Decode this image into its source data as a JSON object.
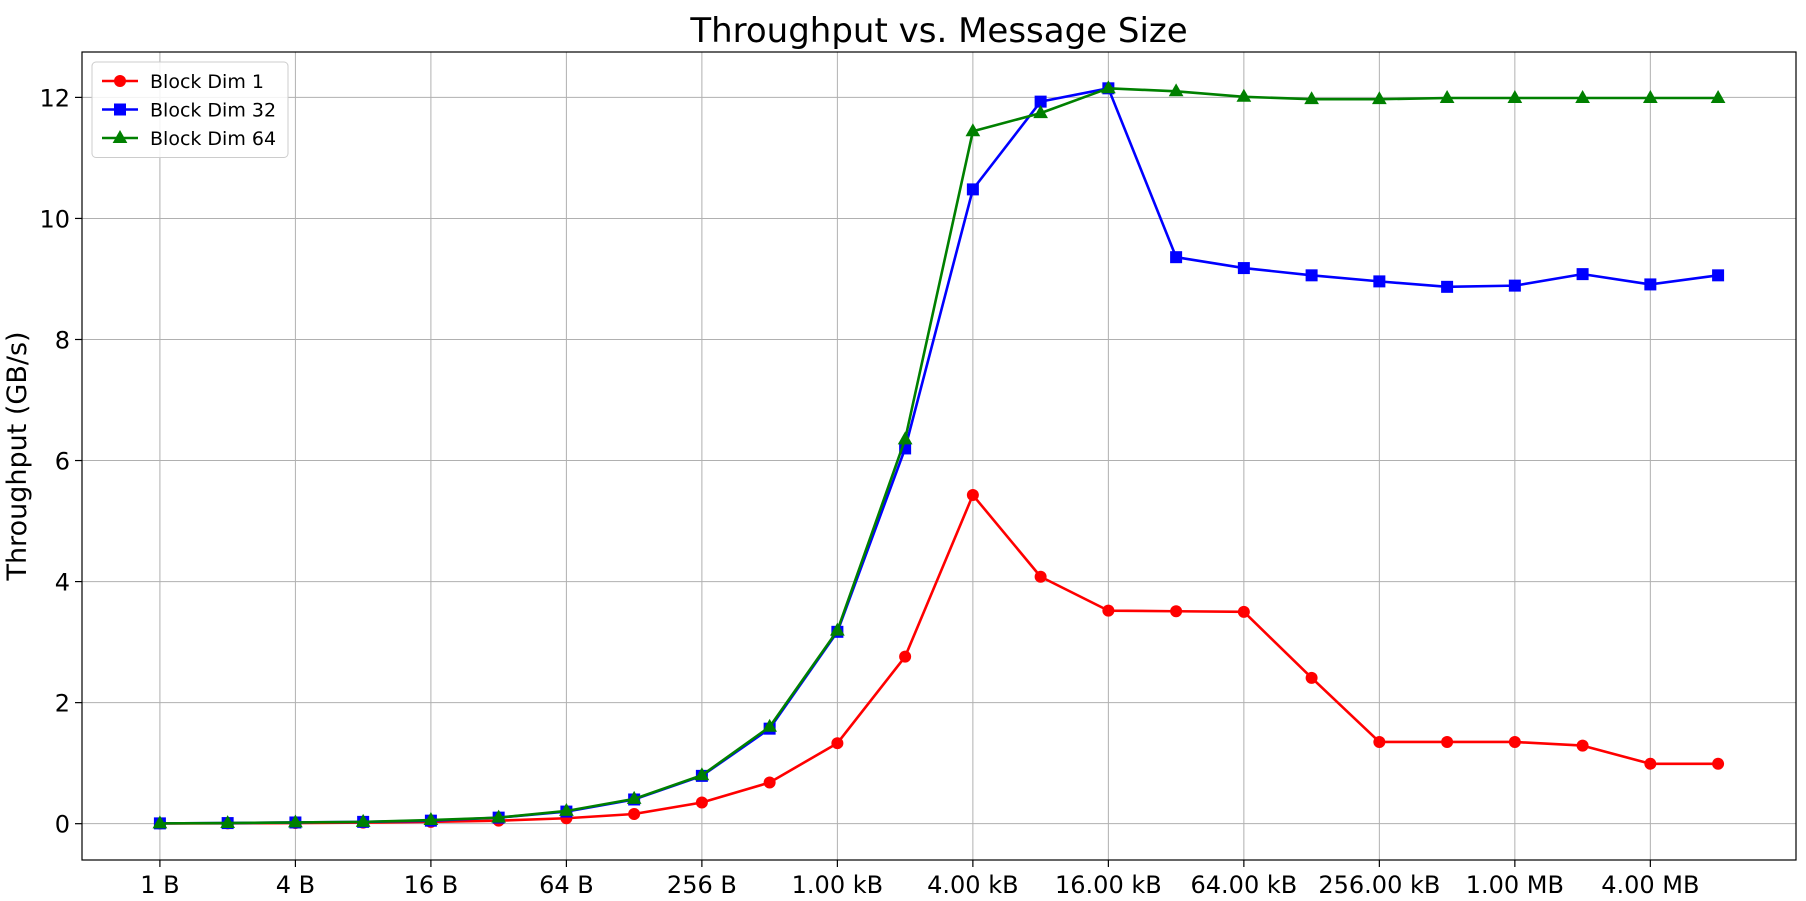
{
  "chart_data": {
    "type": "line",
    "title": "Throughput vs. Message Size",
    "xlabel": "",
    "ylabel": "Throughput (GB/s)",
    "x_scale": "log2",
    "x_unit": "bytes",
    "x": [
      1,
      2,
      4,
      8,
      16,
      32,
      64,
      128,
      256,
      512,
      1024,
      2048,
      4096,
      8192,
      16384,
      32768,
      65536,
      131072,
      262144,
      524288,
      1048576,
      2097152,
      4194304,
      8388608
    ],
    "x_ticks": [
      {
        "value": 1,
        "label": "1 B"
      },
      {
        "value": 4,
        "label": "4 B"
      },
      {
        "value": 16,
        "label": "16 B"
      },
      {
        "value": 64,
        "label": "64 B"
      },
      {
        "value": 256,
        "label": "256 B"
      },
      {
        "value": 1024,
        "label": "1.00 kB"
      },
      {
        "value": 4096,
        "label": "4.00 kB"
      },
      {
        "value": 16384,
        "label": "16.00 kB"
      },
      {
        "value": 65536,
        "label": "64.00 kB"
      },
      {
        "value": 262144,
        "label": "256.00 kB"
      },
      {
        "value": 1048576,
        "label": "1.00 MB"
      },
      {
        "value": 4194304,
        "label": "4.00 MB"
      }
    ],
    "y_ticks": [
      0,
      2,
      4,
      6,
      8,
      10,
      12
    ],
    "ylim": [
      -0.6,
      12.75
    ],
    "grid": true,
    "legend_position": "top-left",
    "series": [
      {
        "name": "Block Dim 1",
        "color": "#ff0000",
        "marker": "circle",
        "values": [
          0.003,
          0.006,
          0.011,
          0.018,
          0.03,
          0.05,
          0.09,
          0.16,
          0.35,
          0.68,
          1.33,
          2.76,
          5.43,
          4.08,
          3.52,
          3.51,
          3.5,
          2.41,
          1.35,
          1.35,
          1.35,
          1.29,
          0.99,
          0.99
        ]
      },
      {
        "name": "Block Dim 32",
        "color": "#0000ff",
        "marker": "square",
        "values": [
          0.005,
          0.01,
          0.02,
          0.03,
          0.05,
          0.1,
          0.2,
          0.4,
          0.79,
          1.57,
          3.17,
          6.2,
          10.48,
          11.93,
          12.15,
          9.36,
          9.18,
          9.06,
          8.96,
          8.87,
          8.89,
          9.08,
          8.91,
          9.06
        ]
      },
      {
        "name": "Block Dim 64",
        "color": "#008000",
        "marker": "triangle",
        "values": [
          0.005,
          0.01,
          0.02,
          0.03,
          0.06,
          0.1,
          0.21,
          0.41,
          0.8,
          1.6,
          3.19,
          6.35,
          11.44,
          11.74,
          12.15,
          12.1,
          12.01,
          11.97,
          11.97,
          11.99,
          11.99,
          11.99,
          11.99,
          11.99
        ]
      }
    ]
  }
}
